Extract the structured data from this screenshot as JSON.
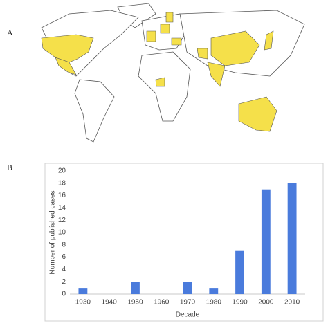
{
  "panel_labels": [
    "A",
    "B"
  ],
  "chart_data": {
    "type": "bar",
    "categories": [
      "1930",
      "1940",
      "1950",
      "1960",
      "1970",
      "1980",
      "1990",
      "2000",
      "2010"
    ],
    "values": [
      1,
      0,
      2,
      0,
      2,
      1,
      7,
      17,
      18
    ],
    "color": "#4a7bdc",
    "xlabel": "Decade",
    "ylabel": "Number of published cases",
    "ylim": [
      0,
      20
    ],
    "yticks": [
      0,
      2,
      4,
      6,
      8,
      10,
      12,
      14,
      16,
      18,
      20
    ],
    "grid": false
  }
}
